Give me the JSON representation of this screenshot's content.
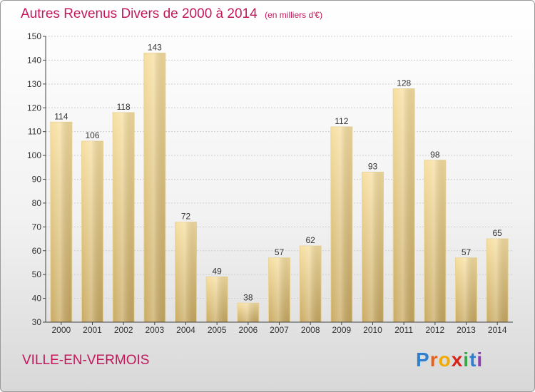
{
  "title": "Autres Revenus Divers de 2000 à 2014",
  "unit_note": "(en milliers d'€)",
  "commune": "VILLE-EN-VERMOIS",
  "brand": {
    "letters": [
      "P",
      "r",
      "o",
      "x",
      "i",
      "t",
      "i"
    ],
    "colors": [
      "#2f7fd0",
      "#e8611a",
      "#f2a900",
      "#d6231c",
      "#3aa64a",
      "#2f7fd0",
      "#8a3fb0"
    ]
  },
  "colors": {
    "bar_light": "#f7dfa0",
    "bar_dark": "#c9aa62",
    "grid": "#cfcfcf",
    "axis": "#444444",
    "title": "#c2185b"
  },
  "chart_data": {
    "type": "bar",
    "categories": [
      "2000",
      "2001",
      "2002",
      "2003",
      "2004",
      "2005",
      "2006",
      "2007",
      "2008",
      "2009",
      "2010",
      "2011",
      "2012",
      "2013",
      "2014"
    ],
    "values": [
      114,
      106,
      118,
      143,
      72,
      49,
      38,
      57,
      62,
      112,
      93,
      128,
      98,
      57,
      65
    ],
    "ylim": [
      30,
      150
    ],
    "yticks": [
      30,
      40,
      50,
      60,
      70,
      80,
      90,
      100,
      110,
      120,
      130,
      140,
      150
    ],
    "grid": true,
    "data_labels": true
  }
}
